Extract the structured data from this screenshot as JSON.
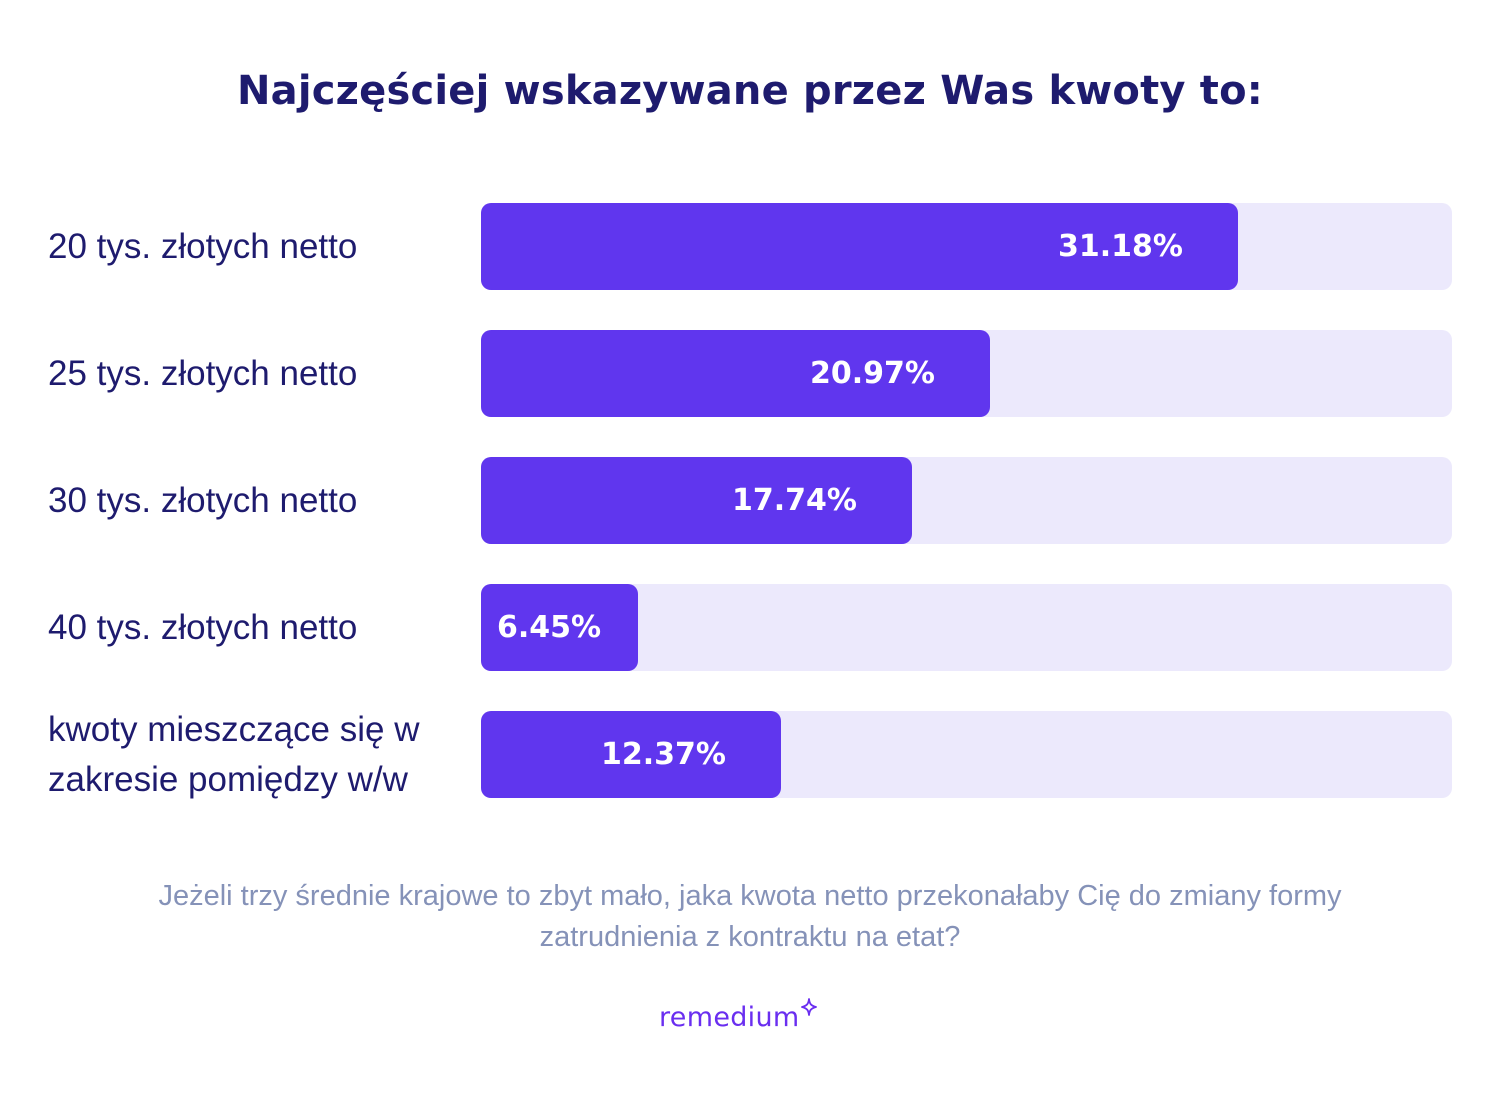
{
  "title": "Najczęściej wskazywane przez Was kwoty to:",
  "subtitle": "Jeżeli trzy średnie krajowe to zbyt mało, jaka kwota netto przekonałaby Cię do zmiany formy zatrudnienia z kontraktu na etat?",
  "brand": {
    "logo_text": "remedium",
    "logo_icon": "sparkle-icon"
  },
  "colors": {
    "bar": "#6036ee",
    "track": "#ece9fc",
    "title": "#1e1b6e",
    "subtitle": "#8592b8",
    "logo": "#6a2ef0"
  },
  "chart_data": {
    "type": "bar",
    "orientation": "horizontal",
    "categories": [
      "20 tys. złotych netto",
      "25 tys. złotych netto",
      "30 tys. złotych netto",
      "40 tys. złotych netto",
      "kwoty mieszczące się w zakresie pomiędzy w/w"
    ],
    "values": [
      31.18,
      20.97,
      17.74,
      6.45,
      12.37
    ],
    "value_labels": [
      "31.18%",
      "20.97%",
      "17.74%",
      "6.45%",
      "12.37%"
    ],
    "unit": "%",
    "xlim": [
      0,
      40
    ],
    "grid": false,
    "legend": "none"
  }
}
